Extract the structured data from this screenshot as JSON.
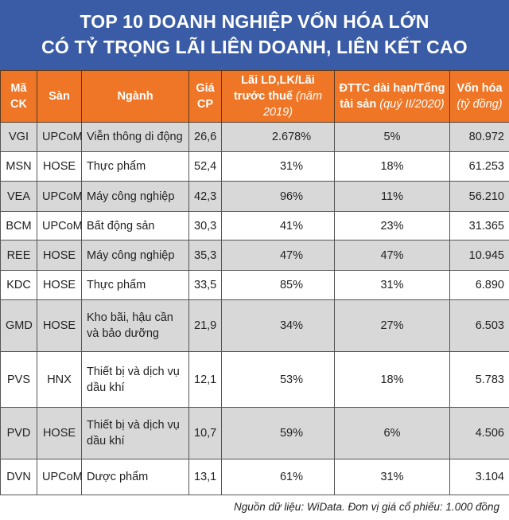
{
  "title": {
    "line1": "TOP 10 DOANH NGHIỆP VỐN HÓA LỚN",
    "line2": "CÓ TỶ TRỌNG LÃI LIÊN DOANH, LIÊN KẾT CAO"
  },
  "columns": [
    {
      "label": "Mã CK",
      "note": ""
    },
    {
      "label": "Sàn",
      "note": ""
    },
    {
      "label": "Ngành",
      "note": ""
    },
    {
      "label": "Giá CP",
      "note": ""
    },
    {
      "label": "Lãi LD,LK/Lãi trước thuế",
      "note": "(năm 2019)"
    },
    {
      "label": "ĐTTC dài hạn/Tổng tài sản",
      "note": "(quý II/2020)"
    },
    {
      "label": "Vốn hóa",
      "note": "(tỷ đồng)"
    }
  ],
  "rows": [
    [
      "VGI",
      "UPCoM",
      "Viễn thông di động",
      "26,6",
      "2.678%",
      "5%",
      "80.972"
    ],
    [
      "MSN",
      "HOSE",
      "Thực phẩm",
      "52,4",
      "31%",
      "18%",
      "61.253"
    ],
    [
      "VEA",
      "UPCoM",
      "Máy công nghiệp",
      "42,3",
      "96%",
      "11%",
      "56.210"
    ],
    [
      "BCM",
      "UPCoM",
      "Bất động sản",
      "30,3",
      "41%",
      "23%",
      "31.365"
    ],
    [
      "REE",
      "HOSE",
      "Máy công nghiệp",
      "35,3",
      "47%",
      "47%",
      "10.945"
    ],
    [
      "KDC",
      "HOSE",
      "Thực phẩm",
      "33,5",
      "85%",
      "31%",
      "6.890"
    ],
    [
      "GMD",
      "HOSE",
      "Kho bãi, hậu cần và bảo dưỡng",
      "21,9",
      "34%",
      "27%",
      "6.503"
    ],
    [
      "PVS",
      "HNX",
      "Thiết bị và dịch vụ dầu khí",
      "12,1",
      "53%",
      "18%",
      "5.783"
    ],
    [
      "PVD",
      "HOSE",
      "Thiết bị và dịch vụ dầu khí",
      "10,7",
      "59%",
      "6%",
      "4.506"
    ],
    [
      "DVN",
      "UPCoM",
      "Dược phẩm",
      "13,1",
      "61%",
      "31%",
      "3.104"
    ]
  ],
  "footer": "Nguồn dữ liệu: WiData. Đơn vị giá cổ phiếu: 1.000 đồng",
  "colors": {
    "title_bg": "#3a5ca6",
    "header_bg": "#ee7626",
    "row_alt": "#d8d8d8"
  }
}
